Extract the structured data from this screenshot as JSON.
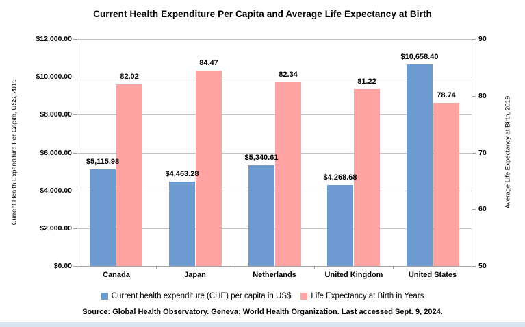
{
  "chart_data": {
    "type": "bar",
    "title": "Current Health Expenditure Per Capita and Average Life Expectancy at Birth",
    "categories": [
      "Canada",
      "Japan",
      "Netherlands",
      "United Kingdom",
      "United States"
    ],
    "series": [
      {
        "name": "Current health expenditure (CHE) per capita in US$",
        "axis": "left",
        "color": "#6d9bd1",
        "values": [
          5115.98,
          4463.28,
          5340.61,
          4268.68,
          10658.4
        ],
        "labels": [
          "$5,115.98",
          "$4,463.28",
          "$5,340.61",
          "$4,268.68",
          "$10,658.40"
        ]
      },
      {
        "name": "Life Expectancy at Birth in Years",
        "axis": "right",
        "color": "#ffa3a3",
        "values": [
          82.02,
          84.47,
          82.34,
          81.22,
          78.74
        ],
        "labels": [
          "82.02",
          "84.47",
          "82.34",
          "81.22",
          "78.74"
        ]
      }
    ],
    "left_axis": {
      "title": "Current Health Expenditure Per Capita, US$, 2019",
      "min": 0,
      "max": 12000,
      "tick_labels_top_to_bottom": [
        "$12,000.00",
        "$10,000.00",
        "$8,000.00",
        "$6,000.00",
        "$4,000.00",
        "$2,000.00",
        "$0.00"
      ]
    },
    "right_axis": {
      "title": "Average Life Expectancy at Birth, 2019",
      "min": 50,
      "max": 90,
      "tick_labels_top_to_bottom": [
        "90",
        "80",
        "70",
        "60",
        "50"
      ]
    },
    "grid": true,
    "legend_position": "bottom",
    "source_note": "Source: Global Health Observatory. Geneva: World Health Organization. Last accessed Sept. 9, 2024.",
    "colors": {
      "gridline": "#c3c3c3",
      "axis_line": "#9f9f9f",
      "bottom_strip": "#d9e4f1",
      "text": "#000000",
      "background": "#ffffff"
    }
  }
}
